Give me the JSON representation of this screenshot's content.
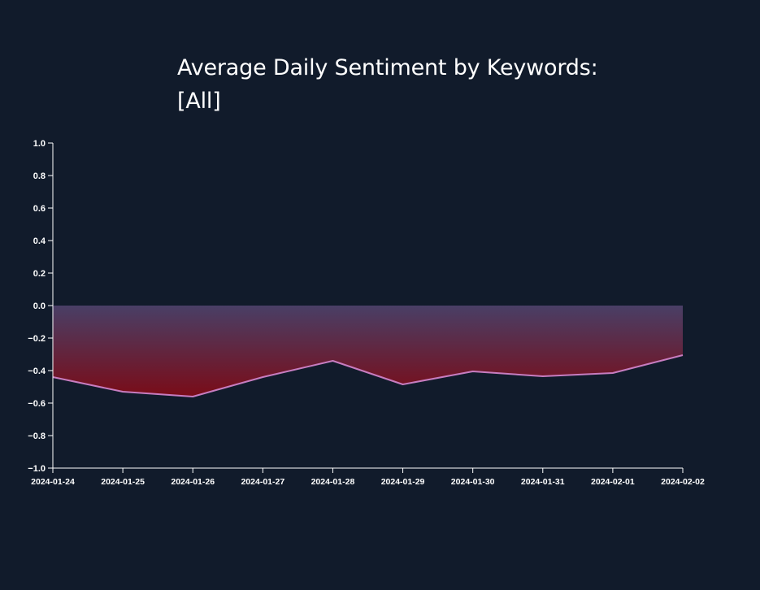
{
  "title": "Average Daily Sentiment by Keywords: [All]",
  "colors": {
    "background": "#111b2b",
    "line": "#c77dc0",
    "area_top": "#493f66",
    "area_bottom": "#7a0c18",
    "axis": "#ffffff"
  },
  "chart_data": {
    "type": "area",
    "title": "Average Daily Sentiment by Keywords: [All]",
    "xlabel": "",
    "ylabel": "",
    "x": [
      "2024-01-24",
      "2024-01-25",
      "2024-01-26",
      "2024-01-27",
      "2024-01-28",
      "2024-01-29",
      "2024-01-30",
      "2024-01-31",
      "2024-02-01",
      "2024-02-02"
    ],
    "values": [
      -0.44,
      -0.53,
      -0.56,
      -0.44,
      -0.34,
      -0.485,
      -0.405,
      -0.435,
      -0.415,
      -0.305
    ],
    "ylim": [
      -1.0,
      1.0
    ],
    "yticks": [
      "1.0",
      "0.8",
      "0.6",
      "0.4",
      "0.2",
      "0.0",
      "−0.2",
      "−0.4",
      "−0.6",
      "−0.8",
      "−1.0"
    ],
    "grid": false,
    "legend": "none"
  }
}
